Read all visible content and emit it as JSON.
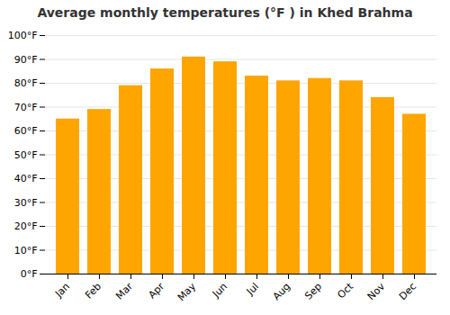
{
  "chart_data": {
    "type": "bar",
    "title": "Average monthly temperatures (°F ) in Khed Brahma",
    "categories": [
      "Jan",
      "Feb",
      "Mar",
      "Apr",
      "May",
      "Jun",
      "Jul",
      "Aug",
      "Sep",
      "Oct",
      "Nov",
      "Dec"
    ],
    "values": [
      65,
      69,
      79,
      86,
      91,
      89,
      83,
      81,
      82,
      81,
      74,
      67
    ],
    "color": "#FFA500",
    "ylim": [
      0,
      100
    ],
    "yticks": [
      {
        "value": 0,
        "label": "0°F"
      },
      {
        "value": 10,
        "label": "10°F"
      },
      {
        "value": 20,
        "label": "20°F"
      },
      {
        "value": 30,
        "label": "30°F"
      },
      {
        "value": 40,
        "label": "40°F"
      },
      {
        "value": 50,
        "label": "50°F"
      },
      {
        "value": 60,
        "label": "60°F"
      },
      {
        "value": 70,
        "label": "70°F"
      },
      {
        "value": 80,
        "label": "80°F"
      },
      {
        "value": 90,
        "label": "90°F"
      },
      {
        "value": 100,
        "label": "100°F"
      }
    ],
    "grid": true
  }
}
